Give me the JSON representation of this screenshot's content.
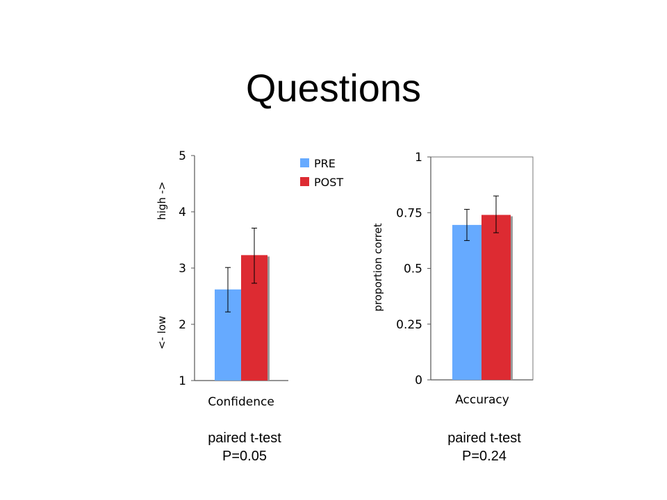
{
  "slide": {
    "title": "Questions"
  },
  "colors": {
    "pre": "#66aaff",
    "post": "#dd2b32"
  },
  "chart_data": [
    {
      "type": "bar",
      "categories": [
        "Confidence"
      ],
      "series": [
        {
          "name": "PRE",
          "values": [
            2.62
          ],
          "error_low": [
            2.22
          ],
          "error_high": [
            3.01
          ]
        },
        {
          "name": "POST",
          "values": [
            3.23
          ],
          "error_low": [
            2.73
          ],
          "error_high": [
            3.71
          ]
        }
      ],
      "ylim": [
        1,
        5
      ],
      "yticks": [
        "1",
        "2",
        "3",
        "4",
        "5"
      ],
      "ytick_values": [
        1,
        2,
        3,
        4,
        5
      ],
      "ylabel_low": "<- low",
      "ylabel_high": "high ->",
      "legend": {
        "position": "top-right",
        "entries": [
          "PRE",
          "POST"
        ]
      },
      "grid": false
    },
    {
      "type": "bar",
      "categories": [
        "Accuracy"
      ],
      "series": [
        {
          "name": "PRE",
          "values": [
            0.695
          ],
          "error_low": [
            0.625
          ],
          "error_high": [
            0.765
          ]
        },
        {
          "name": "POST",
          "values": [
            0.74
          ],
          "error_low": [
            0.66
          ],
          "error_high": [
            0.825
          ]
        }
      ],
      "ylim": [
        0,
        1
      ],
      "yticks": [
        "0",
        "0.25",
        "0.5",
        "0.75",
        "1"
      ],
      "ytick_values": [
        0,
        0.25,
        0.5,
        0.75,
        1
      ],
      "ylabel": "proportion corret",
      "grid": false
    }
  ],
  "captions": [
    {
      "line1": "paired t-test",
      "line2": "P=0.05"
    },
    {
      "line1": "paired t-test",
      "line2": "P=0.24"
    }
  ]
}
